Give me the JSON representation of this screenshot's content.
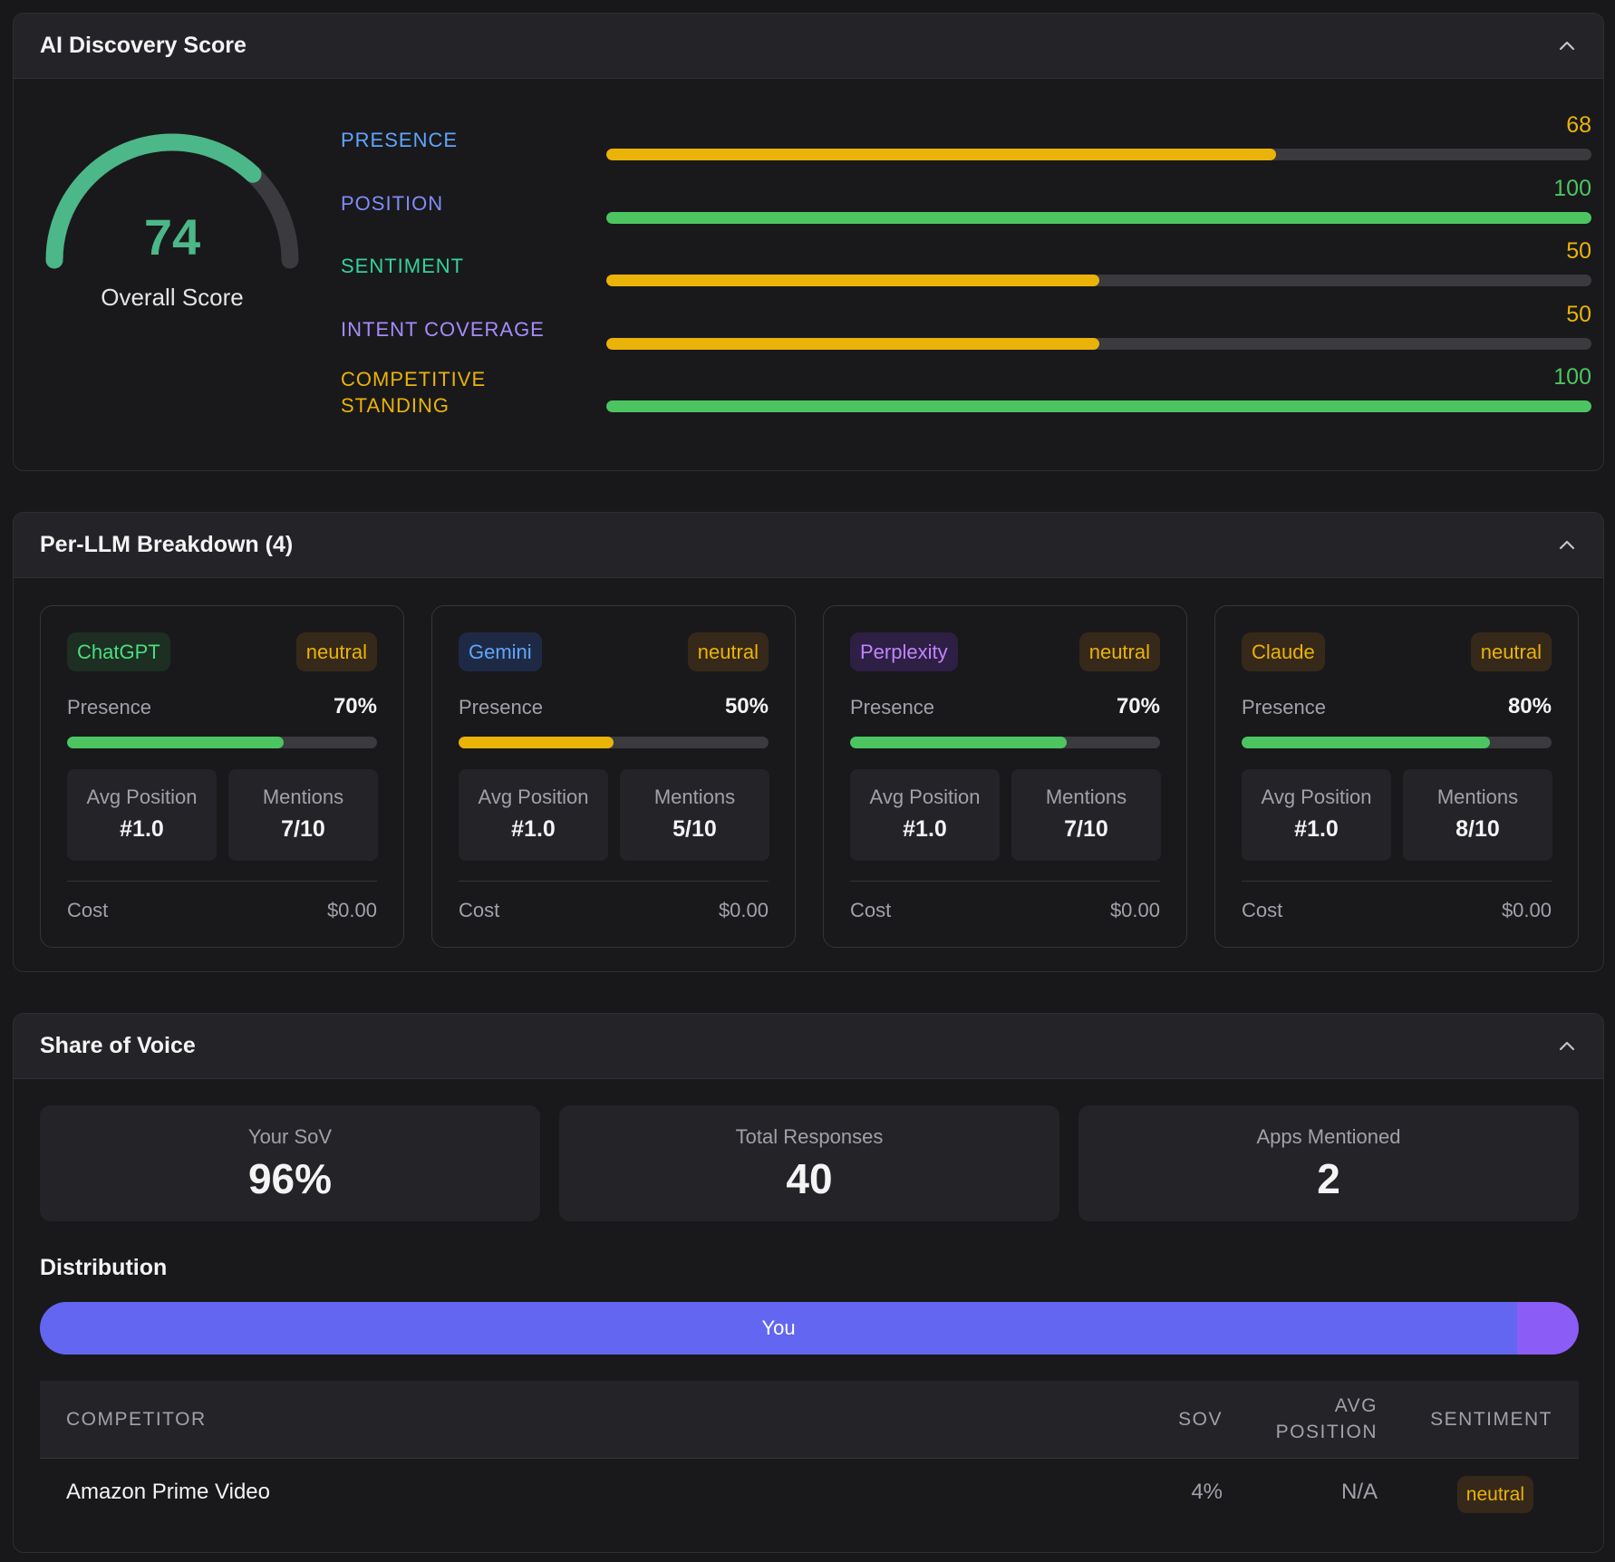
{
  "score_panel": {
    "title": "AI Discovery Score",
    "overall_score": 74,
    "overall_label": "Overall Score",
    "gauge_color": "#4cb788",
    "metrics": [
      {
        "label": "PRESENCE",
        "value": 68,
        "label_color": "#60a5fa",
        "bar_color": "#eab308"
      },
      {
        "label": "POSITION",
        "value": 100,
        "label_color": "#818cf8",
        "bar_color": "#4cc561"
      },
      {
        "label": "SENTIMENT",
        "value": 50,
        "label_color": "#34d399",
        "bar_color": "#eab308"
      },
      {
        "label": "INTENT COVERAGE",
        "value": 50,
        "label_color": "#a78bfa",
        "bar_color": "#eab308"
      },
      {
        "label": "COMPETITIVE STANDING",
        "value": 100,
        "label_color": "#eab308",
        "bar_color": "#4cc561"
      }
    ]
  },
  "llm_panel": {
    "title": "Per-LLM Breakdown (4)",
    "labels": {
      "presence": "Presence",
      "avg_position": "Avg Position",
      "mentions": "Mentions",
      "cost": "Cost"
    },
    "cards": [
      {
        "name": "ChatGPT",
        "name_color": "#4ade80",
        "name_bg": "#1d2e22",
        "sentiment": "neutral",
        "presence": "70%",
        "presence_pct": 70,
        "bar_color": "#4cc561",
        "avg_position": "#1.0",
        "mentions": "7/10",
        "cost": "$0.00"
      },
      {
        "name": "Gemini",
        "name_color": "#60a5fa",
        "name_bg": "#1e2a45",
        "sentiment": "neutral",
        "presence": "50%",
        "presence_pct": 50,
        "bar_color": "#eab308",
        "avg_position": "#1.0",
        "mentions": "5/10",
        "cost": "$0.00"
      },
      {
        "name": "Perplexity",
        "name_color": "#c084fc",
        "name_bg": "#2e1f45",
        "sentiment": "neutral",
        "presence": "70%",
        "presence_pct": 70,
        "bar_color": "#4cc561",
        "avg_position": "#1.0",
        "mentions": "7/10",
        "cost": "$0.00"
      },
      {
        "name": "Claude",
        "name_color": "#eab308",
        "name_bg": "#36291a",
        "sentiment": "neutral",
        "presence": "80%",
        "presence_pct": 80,
        "bar_color": "#4cc561",
        "avg_position": "#1.0",
        "mentions": "8/10",
        "cost": "$0.00"
      }
    ]
  },
  "sov_panel": {
    "title": "Share of Voice",
    "stats": [
      {
        "label": "Your SoV",
        "value": "96%"
      },
      {
        "label": "Total Responses",
        "value": "40"
      },
      {
        "label": "Apps Mentioned",
        "value": "2"
      }
    ],
    "distribution_title": "Distribution",
    "distribution": [
      {
        "label": "You",
        "pct": 96,
        "color": "#6366f1"
      },
      {
        "label": "",
        "pct": 4,
        "color": "#8b5cf6"
      }
    ],
    "table": {
      "headers": {
        "competitor": "COMPETITOR",
        "sov": "SOV",
        "avg_position_1": "AVG",
        "avg_position_2": "POSITION",
        "sentiment": "SENTIMENT"
      },
      "rows": [
        {
          "competitor": "Amazon Prime Video",
          "sov": "4%",
          "avg_position": "N/A",
          "sentiment": "neutral"
        }
      ]
    }
  }
}
